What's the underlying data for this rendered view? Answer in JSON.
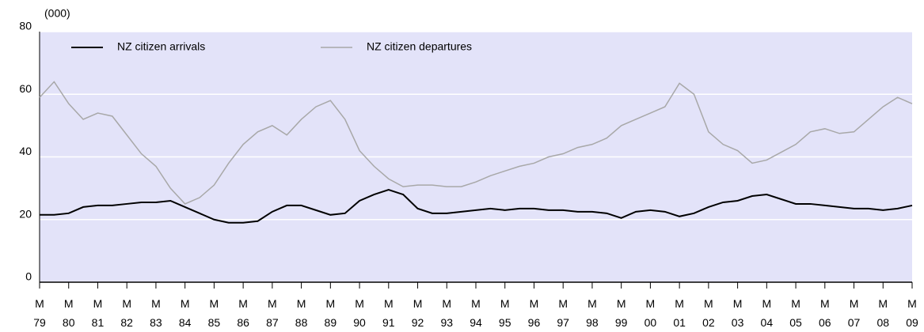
{
  "chart_data": {
    "type": "line",
    "y_unit_label": "(000)",
    "x": [
      1979,
      1979.5,
      1980,
      1980.5,
      1981,
      1981.5,
      1982,
      1982.5,
      1983,
      1983.5,
      1984,
      1984.5,
      1985,
      1985.5,
      1986,
      1986.5,
      1987,
      1987.5,
      1988,
      1988.5,
      1989,
      1989.5,
      1990,
      1990.5,
      1991,
      1991.5,
      1992,
      1992.5,
      1993,
      1993.5,
      1994,
      1994.5,
      1995,
      1995.5,
      1996,
      1996.5,
      1997,
      1997.5,
      1998,
      1998.5,
      1999,
      1999.5,
      2000,
      2000.5,
      2001,
      2001.5,
      2002,
      2002.5,
      2003,
      2003.5,
      2004,
      2004.5,
      2005,
      2005.5,
      2006,
      2006.5,
      2007,
      2007.5,
      2008,
      2008.5,
      2009
    ],
    "series": [
      {
        "name": "NZ citizen arrivals",
        "color": "#000000",
        "values": [
          21.5,
          21.5,
          22,
          24,
          24.5,
          24.5,
          25,
          25.5,
          25.5,
          26,
          24,
          22,
          20,
          19,
          19,
          19.5,
          22.5,
          24.5,
          24.5,
          23,
          21.5,
          22,
          26,
          28,
          29.5,
          28,
          23.5,
          22,
          22,
          22.5,
          23,
          23.5,
          23,
          23.5,
          23.5,
          23,
          23,
          22.5,
          22.5,
          22,
          20.5,
          22.5,
          23,
          22.5,
          21,
          22,
          24,
          25.5,
          26,
          27.5,
          28,
          26.5,
          25,
          25,
          24.5,
          24,
          23.5,
          23.5,
          23,
          23.5,
          24.5
        ]
      },
      {
        "name": "NZ citizen departures",
        "color": "#a8a8a8",
        "values": [
          59,
          64,
          57,
          52,
          54,
          53,
          47,
          41,
          37,
          30,
          25,
          27,
          31,
          38,
          44,
          48,
          50,
          47,
          52,
          56,
          58,
          52,
          42,
          37,
          33,
          30.5,
          31,
          31,
          30.5,
          30.5,
          32,
          34,
          35.5,
          37,
          38,
          40,
          41,
          43,
          44,
          46,
          50,
          52,
          54,
          56,
          63.5,
          60,
          48,
          44,
          42,
          38,
          39,
          41.5,
          44,
          48,
          49,
          47.5,
          48,
          52,
          56,
          59,
          57
        ]
      }
    ],
    "xlim": [
      1979,
      2009
    ],
    "xticks": [
      {
        "value": 1979,
        "label": "M\n79"
      },
      {
        "value": 1980,
        "label": "M\n80"
      },
      {
        "value": 1981,
        "label": "M\n81"
      },
      {
        "value": 1982,
        "label": "M\n82"
      },
      {
        "value": 1983,
        "label": "M\n83"
      },
      {
        "value": 1984,
        "label": "M\n84"
      },
      {
        "value": 1985,
        "label": "M\n85"
      },
      {
        "value": 1986,
        "label": "M\n86"
      },
      {
        "value": 1987,
        "label": "M\n87"
      },
      {
        "value": 1988,
        "label": "M\n88"
      },
      {
        "value": 1989,
        "label": "M\n89"
      },
      {
        "value": 1990,
        "label": "M\n90"
      },
      {
        "value": 1991,
        "label": "M\n91"
      },
      {
        "value": 1992,
        "label": "M\n92"
      },
      {
        "value": 1993,
        "label": "M\n93"
      },
      {
        "value": 1994,
        "label": "M\n94"
      },
      {
        "value": 1995,
        "label": "M\n95"
      },
      {
        "value": 1996,
        "label": "M\n96"
      },
      {
        "value": 1997,
        "label": "M\n97"
      },
      {
        "value": 1998,
        "label": "M\n98"
      },
      {
        "value": 1999,
        "label": "M\n99"
      },
      {
        "value": 2000,
        "label": "M\n00"
      },
      {
        "value": 2001,
        "label": "M\n01"
      },
      {
        "value": 2002,
        "label": "M\n02"
      },
      {
        "value": 2003,
        "label": "M\n03"
      },
      {
        "value": 2004,
        "label": "M\n04"
      },
      {
        "value": 2005,
        "label": "M\n05"
      },
      {
        "value": 2006,
        "label": "M\n06"
      },
      {
        "value": 2007,
        "label": "M\n07"
      },
      {
        "value": 2008,
        "label": "M\n08"
      },
      {
        "value": 2009,
        "label": "M\n09"
      }
    ],
    "ylim": [
      0,
      80
    ],
    "yticks": [
      0,
      20,
      40,
      60,
      80
    ],
    "grid": true,
    "legend": "top-left",
    "background": "#e3e3f9"
  }
}
